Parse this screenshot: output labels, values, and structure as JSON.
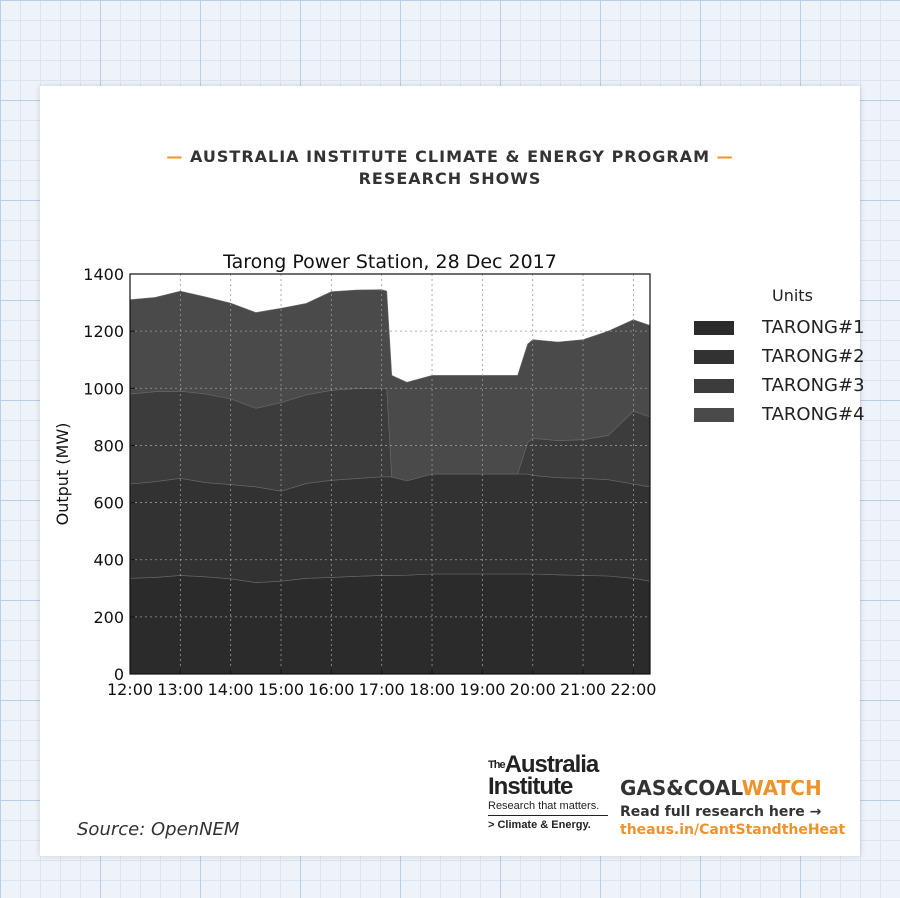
{
  "header": {
    "line1": "AUSTRALIA INSTITUTE CLIMATE & ENERGY PROGRAM",
    "line2": "RESEARCH SHOWS",
    "dash": "—"
  },
  "source": "Source: OpenNEM",
  "branding": {
    "the": "The",
    "name_line1": "Australia",
    "name_line2": "Institute",
    "tagline": "Research that matters.",
    "program": "> Climate & Energy.",
    "gcw_part1": "GAS&COAL",
    "gcw_part2": "WATCH",
    "read_more": "Read full research here →",
    "url": "theaus.in/CantStandtheHeat"
  },
  "colors": {
    "accent": "#f0922b",
    "tarong1": "#2b2b2b",
    "tarong2": "#323232",
    "tarong3": "#3c3c3c",
    "tarong4": "#4a4a4a"
  },
  "chart_data": {
    "type": "area",
    "stacked": true,
    "title": "Tarong Power Station, 28 Dec 2017",
    "xlabel": "",
    "ylabel": "Output (MW)",
    "ylim": [
      0,
      1400
    ],
    "yticks": [
      0,
      200,
      400,
      600,
      800,
      1000,
      1200,
      1400
    ],
    "xlim": [
      12.0,
      22.33
    ],
    "xticks": [
      12,
      13,
      14,
      15,
      16,
      17,
      18,
      19,
      20,
      21,
      22
    ],
    "xtick_labels": [
      "12:00",
      "13:00",
      "14:00",
      "15:00",
      "16:00",
      "17:00",
      "18:00",
      "19:00",
      "20:00",
      "21:00",
      "22:00"
    ],
    "grid": true,
    "legend_title": "Units",
    "legend_position": "right",
    "x": [
      12.0,
      12.5,
      13.0,
      13.5,
      14.0,
      14.5,
      15.0,
      15.5,
      16.0,
      16.5,
      17.0,
      17.1,
      17.2,
      17.5,
      18.0,
      18.5,
      19.0,
      19.5,
      19.7,
      19.9,
      20.0,
      20.5,
      21.0,
      21.5,
      22.0,
      22.33
    ],
    "series": [
      {
        "name": "TARONG#1",
        "values": [
          335,
          338,
          345,
          340,
          333,
          320,
          325,
          335,
          338,
          342,
          345,
          345,
          345,
          346,
          350,
          350,
          350,
          350,
          350,
          350,
          350,
          347,
          345,
          343,
          335,
          325
        ]
      },
      {
        "name": "TARONG#2",
        "values": [
          330,
          335,
          340,
          330,
          330,
          335,
          315,
          332,
          340,
          342,
          345,
          345,
          345,
          330,
          350,
          350,
          350,
          350,
          350,
          350,
          345,
          340,
          340,
          337,
          330,
          330
        ]
      },
      {
        "name": "TARONG#3",
        "values": [
          315,
          315,
          305,
          310,
          300,
          275,
          310,
          310,
          315,
          315,
          310,
          310,
          0,
          0,
          0,
          0,
          0,
          0,
          0,
          110,
          130,
          130,
          135,
          155,
          255,
          245
        ]
      },
      {
        "name": "TARONG#4",
        "values": [
          330,
          330,
          350,
          340,
          335,
          335,
          330,
          320,
          345,
          345,
          345,
          340,
          355,
          345,
          345,
          345,
          345,
          345,
          345,
          345,
          345,
          345,
          350,
          365,
          320,
          320
        ]
      }
    ]
  }
}
